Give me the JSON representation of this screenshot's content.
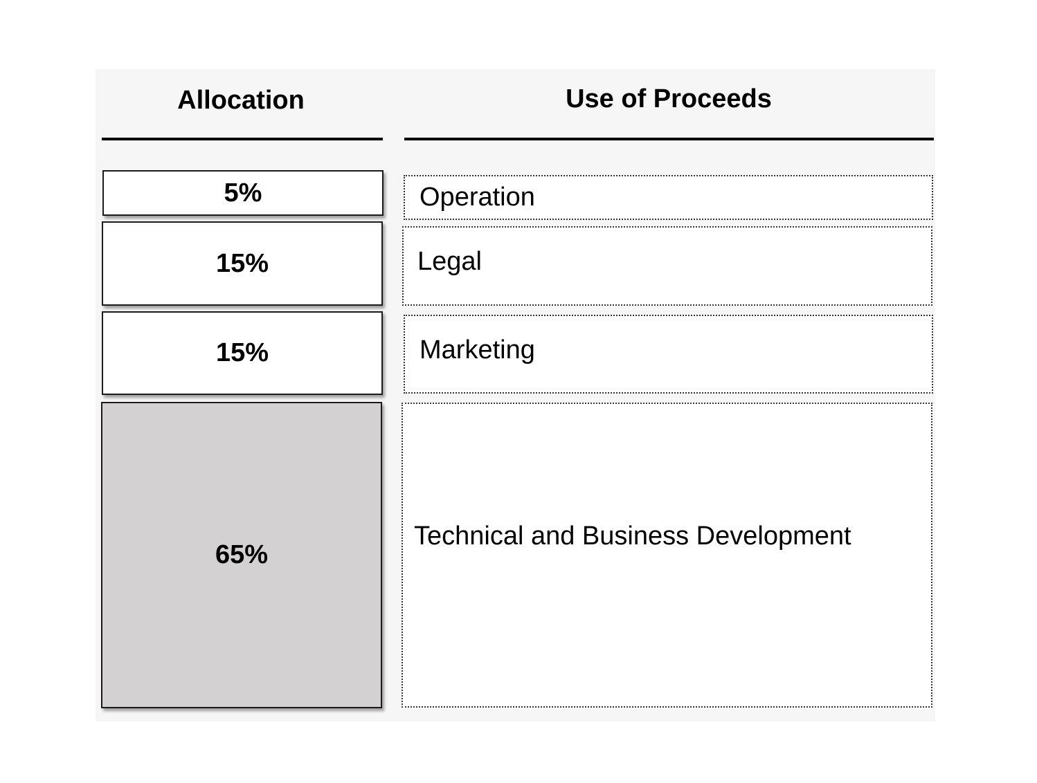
{
  "headers": {
    "allocation": "Allocation",
    "use_of_proceeds": "Use of Proceeds"
  },
  "rows": [
    {
      "allocation": "5%",
      "use": "Operation"
    },
    {
      "allocation": "15%",
      "use": "Legal"
    },
    {
      "allocation": "15%",
      "use": "Marketing"
    },
    {
      "allocation": "65%",
      "use": "Technical and Business Development"
    }
  ],
  "colors": {
    "panel_background": "#f6f6f6",
    "highlight_fill": "#d3d1d2",
    "box_fill": "#ffffff",
    "border": "#1a1a1a"
  }
}
